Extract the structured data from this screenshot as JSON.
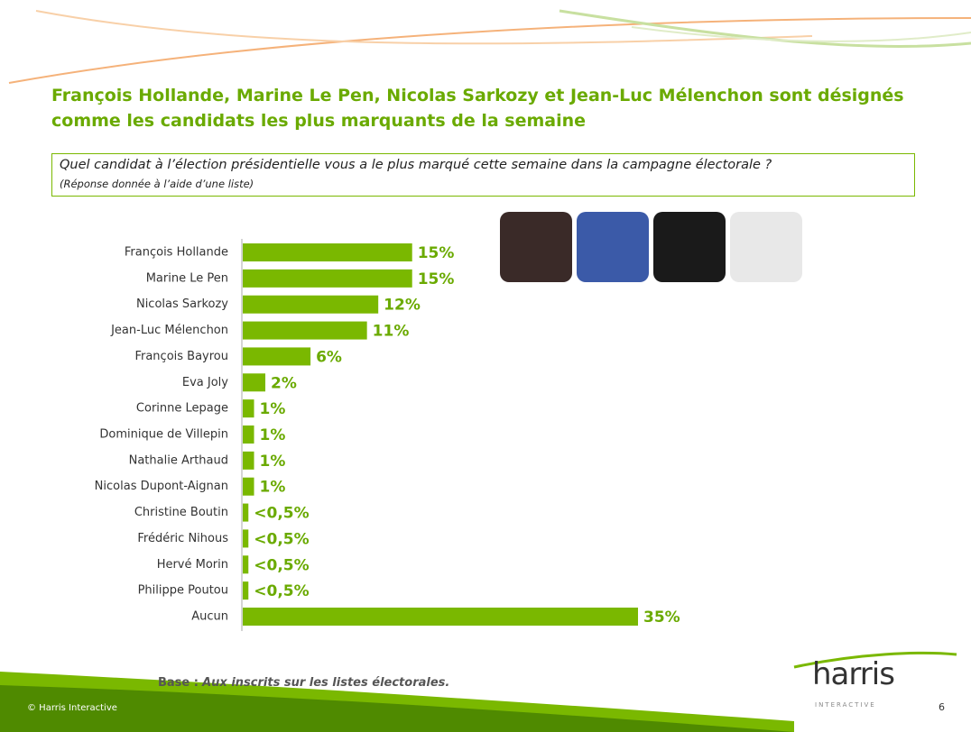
{
  "header": {
    "title": "François Hollande, Marine Le Pen, Nicolas Sarkozy et Jean-Luc Mélenchon sont désignés comme les candidats les plus marquants de la semaine",
    "question": "Quel candidat à l’élection présidentielle vous a le plus marqué cette semaine dans la campagne électorale ?",
    "note": "(Réponse donnée à l’aide d’une liste)"
  },
  "chart_data": {
    "type": "bar",
    "orientation": "horizontal",
    "color": "#7ab800",
    "categories": [
      "François Hollande",
      "Marine Le Pen",
      "Nicolas Sarkozy",
      "Jean-Luc Mélenchon",
      "François Bayrou",
      "Eva Joly",
      "Corinne Lepage",
      "Dominique de Villepin",
      "Nathalie Arthaud",
      "Nicolas Dupont-Aignan",
      "Christine Boutin",
      "Frédéric Nihous",
      "Hervé Morin",
      "Philippe Poutou",
      "Aucun"
    ],
    "values": [
      15,
      15,
      12,
      11,
      6,
      2,
      1,
      1,
      1,
      1,
      0.5,
      0.5,
      0.5,
      0.5,
      35
    ],
    "value_labels": [
      "15%",
      "15%",
      "12%",
      "11%",
      "6%",
      "2%",
      "1%",
      "1%",
      "1%",
      "1%",
      "<0,5%",
      "<0,5%",
      "<0,5%",
      "<0,5%",
      "35%"
    ]
  },
  "footer": {
    "base_label": "Base :",
    "base_text": "Aux inscrits sur les listes électorales.",
    "copyright": "© Harris Interactive",
    "logo": "harris",
    "logo_sub": "INTERACTIVE",
    "page": 6
  }
}
